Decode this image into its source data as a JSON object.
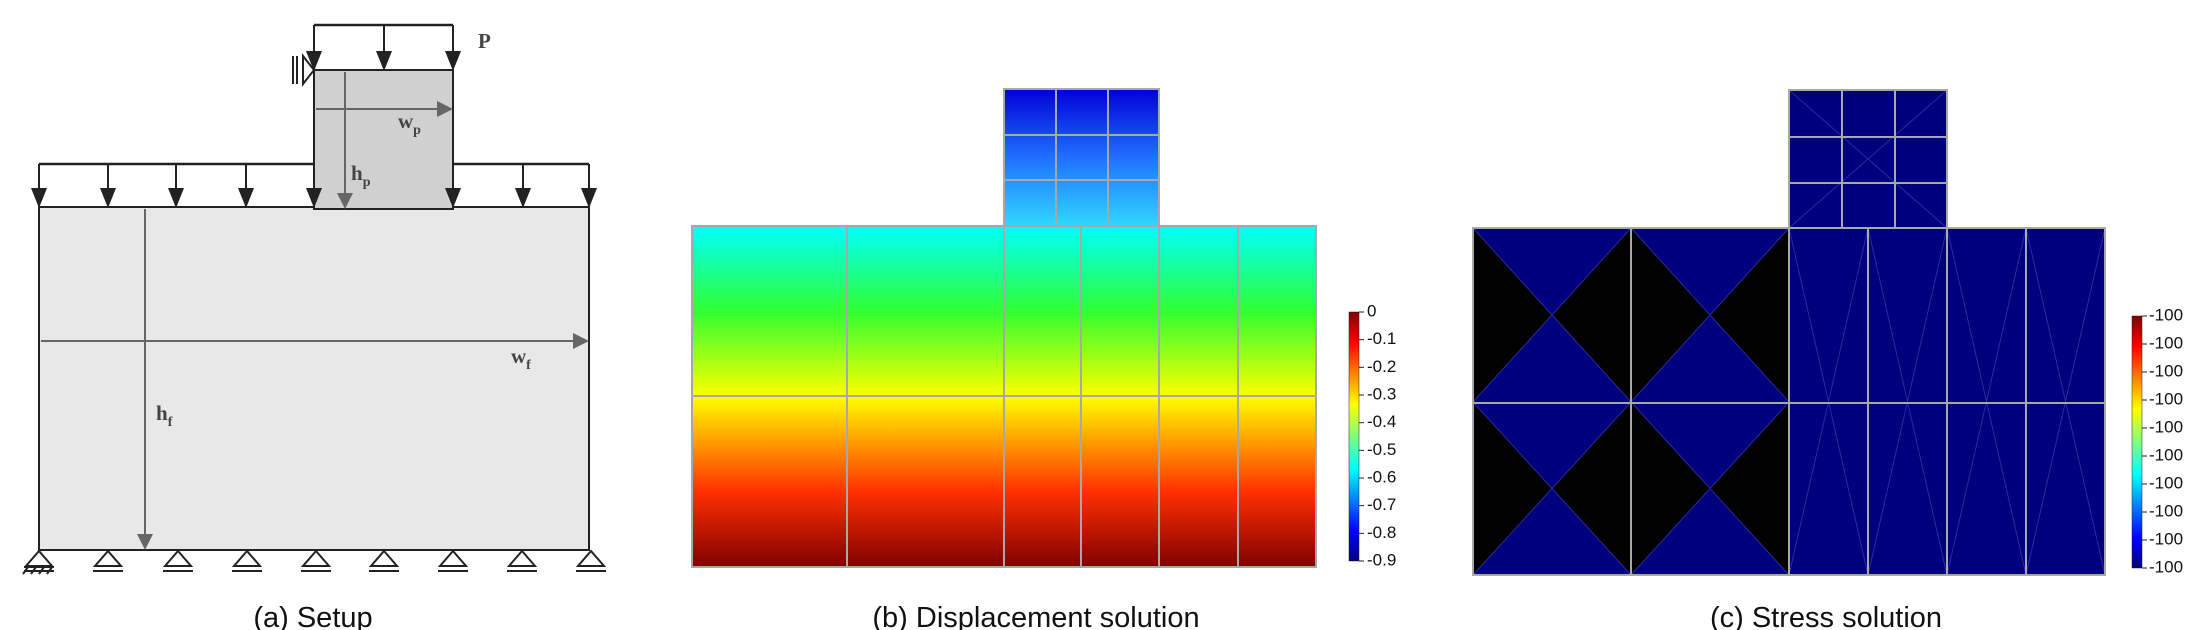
{
  "panels": [
    {
      "caption": "(a) Setup",
      "labels": {
        "load": "P",
        "plate_width": {
          "text": "w",
          "sub": "p"
        },
        "plate_height": {
          "text": "h",
          "sub": "p"
        },
        "foundation_width": {
          "text": "w",
          "sub": "f"
        },
        "foundation_height": {
          "text": "h",
          "sub": "f"
        }
      }
    },
    {
      "caption": "(b) Displacement solution",
      "colorbar": {
        "lim": [
          -0.9,
          0
        ],
        "ticks": [
          0,
          -0.1,
          -0.2,
          -0.3,
          -0.4,
          -0.5,
          -0.6,
          -0.7,
          -0.8,
          -0.9
        ]
      }
    },
    {
      "caption": "(c) Stress solution",
      "colorbar": {
        "tick_labels": [
          "-100",
          "-100",
          "-100",
          "-100",
          "-100",
          "-100",
          "-100",
          "-100",
          "-100",
          "-100"
        ]
      }
    }
  ]
}
